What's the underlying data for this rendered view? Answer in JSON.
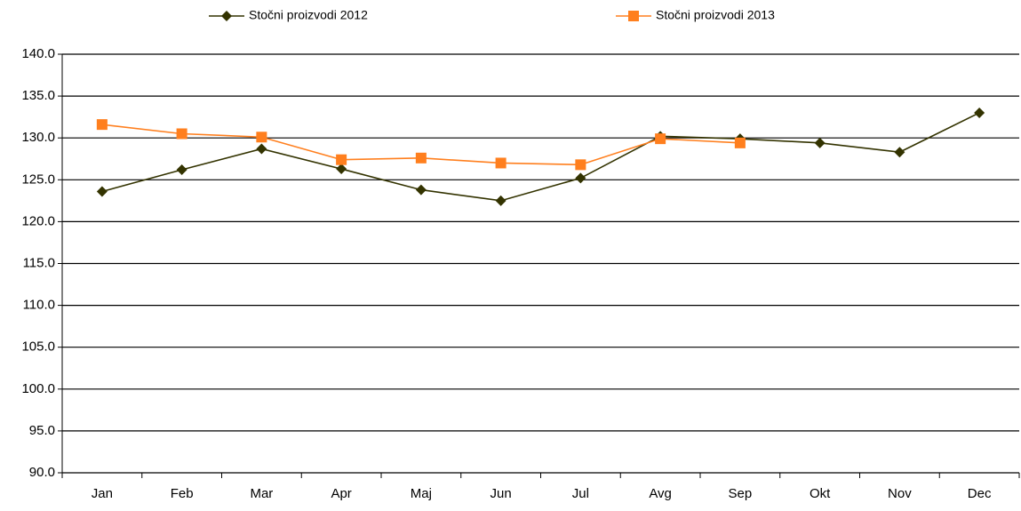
{
  "chart_data": {
    "type": "line",
    "categories": [
      "Jan",
      "Feb",
      "Mar",
      "Apr",
      "Maj",
      "Jun",
      "Jul",
      "Avg",
      "Sep",
      "Okt",
      "Nov",
      "Dec"
    ],
    "series": [
      {
        "name": "Stočni proizvodi  2012",
        "color": "#333300",
        "marker": "diamond",
        "values": [
          123.6,
          126.2,
          128.7,
          126.3,
          123.8,
          122.5,
          125.2,
          130.2,
          129.9,
          129.4,
          128.3,
          133.0
        ]
      },
      {
        "name": "Stočni proizvodi  2013",
        "color": "#ff7f1e",
        "marker": "square",
        "values": [
          131.6,
          130.5,
          130.1,
          127.4,
          127.6,
          127.0,
          126.8,
          129.9,
          129.4,
          null,
          null,
          null
        ]
      }
    ],
    "ylim": [
      90,
      140
    ],
    "yticks": [
      {
        "value": 90,
        "label": "90.0"
      },
      {
        "value": 95,
        "label": "95.0"
      },
      {
        "value": 100,
        "label": "100.0"
      },
      {
        "value": 105,
        "label": "105.0"
      },
      {
        "value": 110,
        "label": "110.0"
      },
      {
        "value": 115,
        "label": "115.0"
      },
      {
        "value": 120,
        "label": "120.0"
      },
      {
        "value": 125,
        "label": "125.0"
      },
      {
        "value": 130,
        "label": "130.0"
      },
      {
        "value": 135,
        "label": "135.0"
      },
      {
        "value": 140,
        "label": "140.0"
      }
    ],
    "grid": true,
    "legend": "top"
  }
}
